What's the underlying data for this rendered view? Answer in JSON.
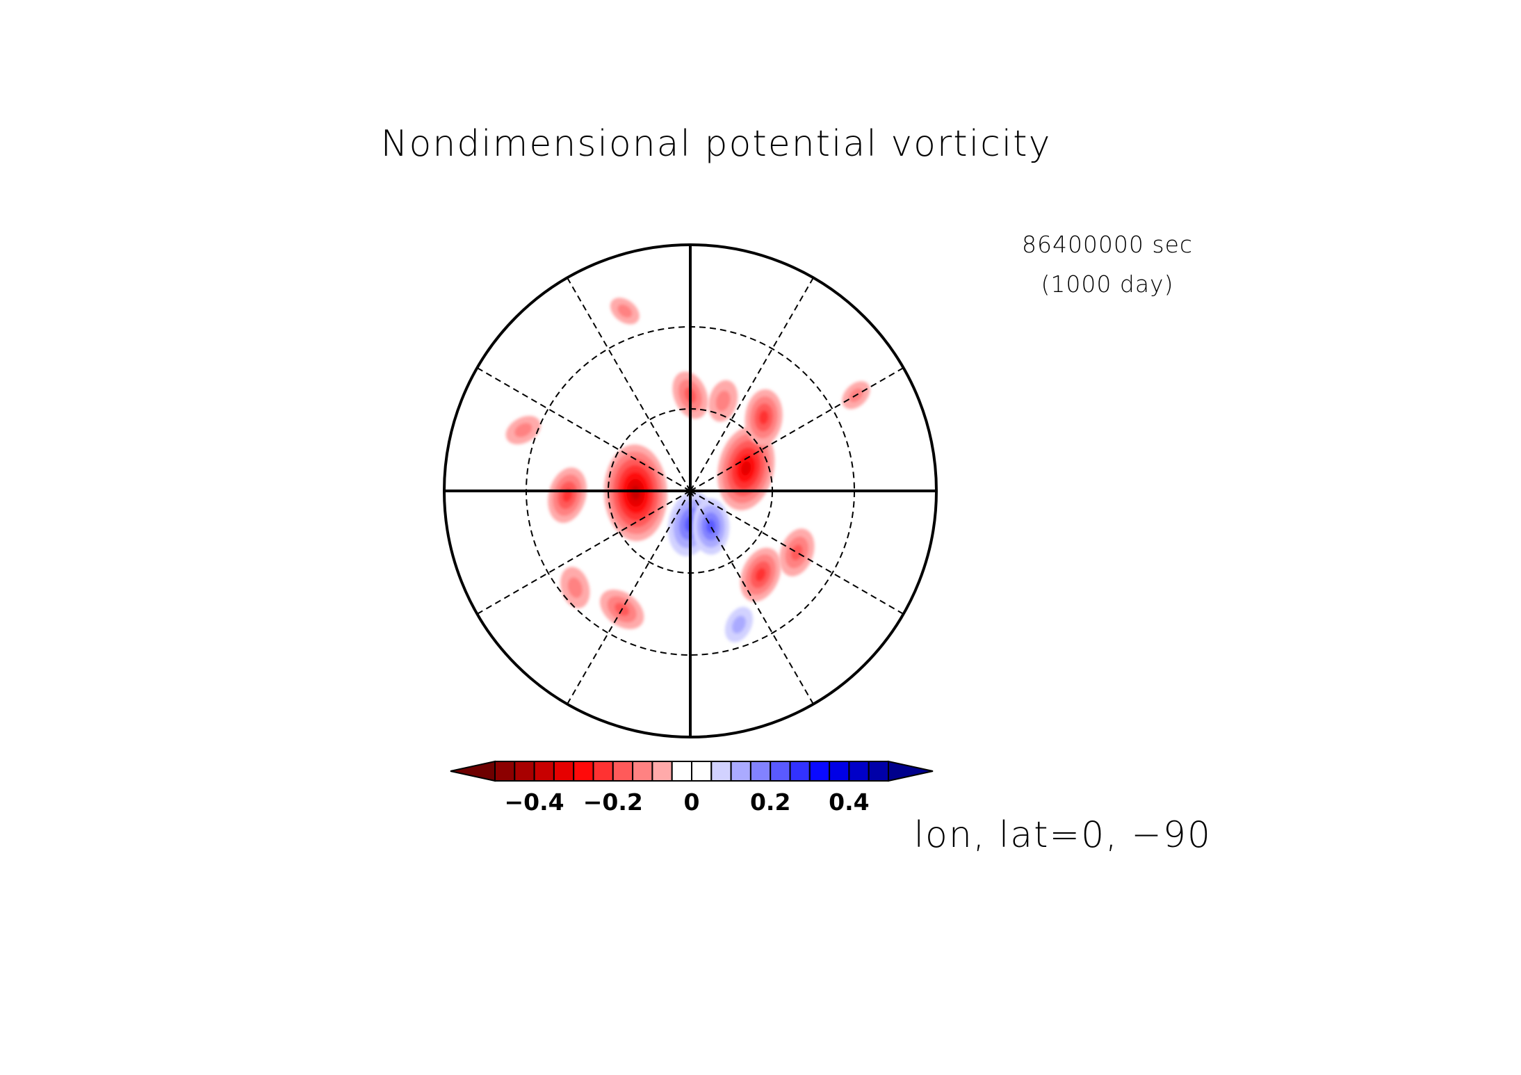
{
  "chart_data": {
    "type": "heatmap",
    "projection": "polar-stereographic",
    "title": "Nondimensional potential vorticity",
    "time_label_line1": "86400000 sec",
    "time_label_line2": "(1000 day)",
    "axis_label": "lon, lat=0, −90",
    "colorbar": {
      "ticks": [
        {
          "value": -0.4,
          "label": "−0.4"
        },
        {
          "value": -0.2,
          "label": "−0.2"
        },
        {
          "value": 0,
          "label": "0"
        },
        {
          "value": 0.2,
          "label": "0.2"
        },
        {
          "value": 0.4,
          "label": "0.4"
        }
      ],
      "levels": [
        -0.5,
        -0.45,
        -0.4,
        -0.35,
        -0.3,
        -0.25,
        -0.2,
        -0.15,
        -0.1,
        -0.05,
        0,
        0.05,
        0.1,
        0.15,
        0.2,
        0.25,
        0.3,
        0.35,
        0.4,
        0.45,
        0.5
      ],
      "colors": [
        "#6e0000",
        "#8c0000",
        "#a80000",
        "#c80000",
        "#e60000",
        "#ff0a0a",
        "#ff3232",
        "#ff5a5a",
        "#ff8282",
        "#ffaaaa",
        "#ffffff",
        "#ffffff",
        "#d2d2ff",
        "#aaaaff",
        "#8282ff",
        "#5a5aff",
        "#3232ff",
        "#0a0aff",
        "#0000e6",
        "#0000c8",
        "#0000a8",
        "#00008c"
      ],
      "extend": "both"
    },
    "gridlines": {
      "meridian_step_deg": 30,
      "latitude_circles_deg": [
        -60,
        -30
      ]
    },
    "features": [
      {
        "lon": 268,
        "lat": -70,
        "value": -0.35
      },
      {
        "lon": 268,
        "lat": -45,
        "value": -0.18
      },
      {
        "lon": 68,
        "lat": -68,
        "value": -0.3
      },
      {
        "lon": 45,
        "lat": -52,
        "value": -0.18
      },
      {
        "lon": 0,
        "lat": -55,
        "value": -0.15
      },
      {
        "lon": 20,
        "lat": -55,
        "value": -0.12
      },
      {
        "lon": 180,
        "lat": -78,
        "value": 0.22
      },
      {
        "lon": 150,
        "lat": -75,
        "value": 0.18
      },
      {
        "lon": 160,
        "lat": -38,
        "value": 0.1
      },
      {
        "lon": 140,
        "lat": -50,
        "value": -0.18
      },
      {
        "lon": 120,
        "lat": -45,
        "value": -0.15
      },
      {
        "lon": 210,
        "lat": -40,
        "value": -0.15
      },
      {
        "lon": 230,
        "lat": -35,
        "value": -0.12
      },
      {
        "lon": 290,
        "lat": -25,
        "value": -0.1
      },
      {
        "lon": 340,
        "lat": -20,
        "value": -0.08
      },
      {
        "lon": 60,
        "lat": -20,
        "value": -0.08
      }
    ]
  }
}
